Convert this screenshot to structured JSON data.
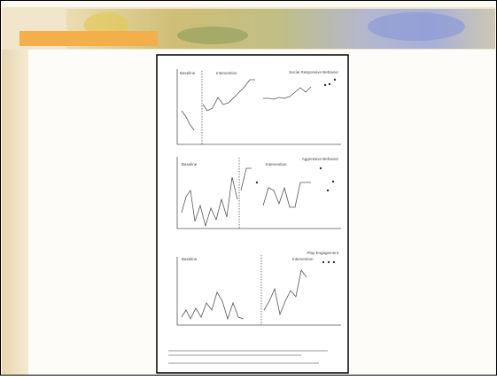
{
  "figure": {
    "panels": [
      {
        "title": "Social Responsive Behavior",
        "phases": [
          "Baseline",
          "Intervention"
        ]
      },
      {
        "title": "Aggressive Behavior",
        "phases": [
          "Baseline",
          "Intervention"
        ]
      },
      {
        "title": "Play Engagement",
        "phases": [
          "Baseline",
          "Intervention"
        ]
      }
    ]
  }
}
